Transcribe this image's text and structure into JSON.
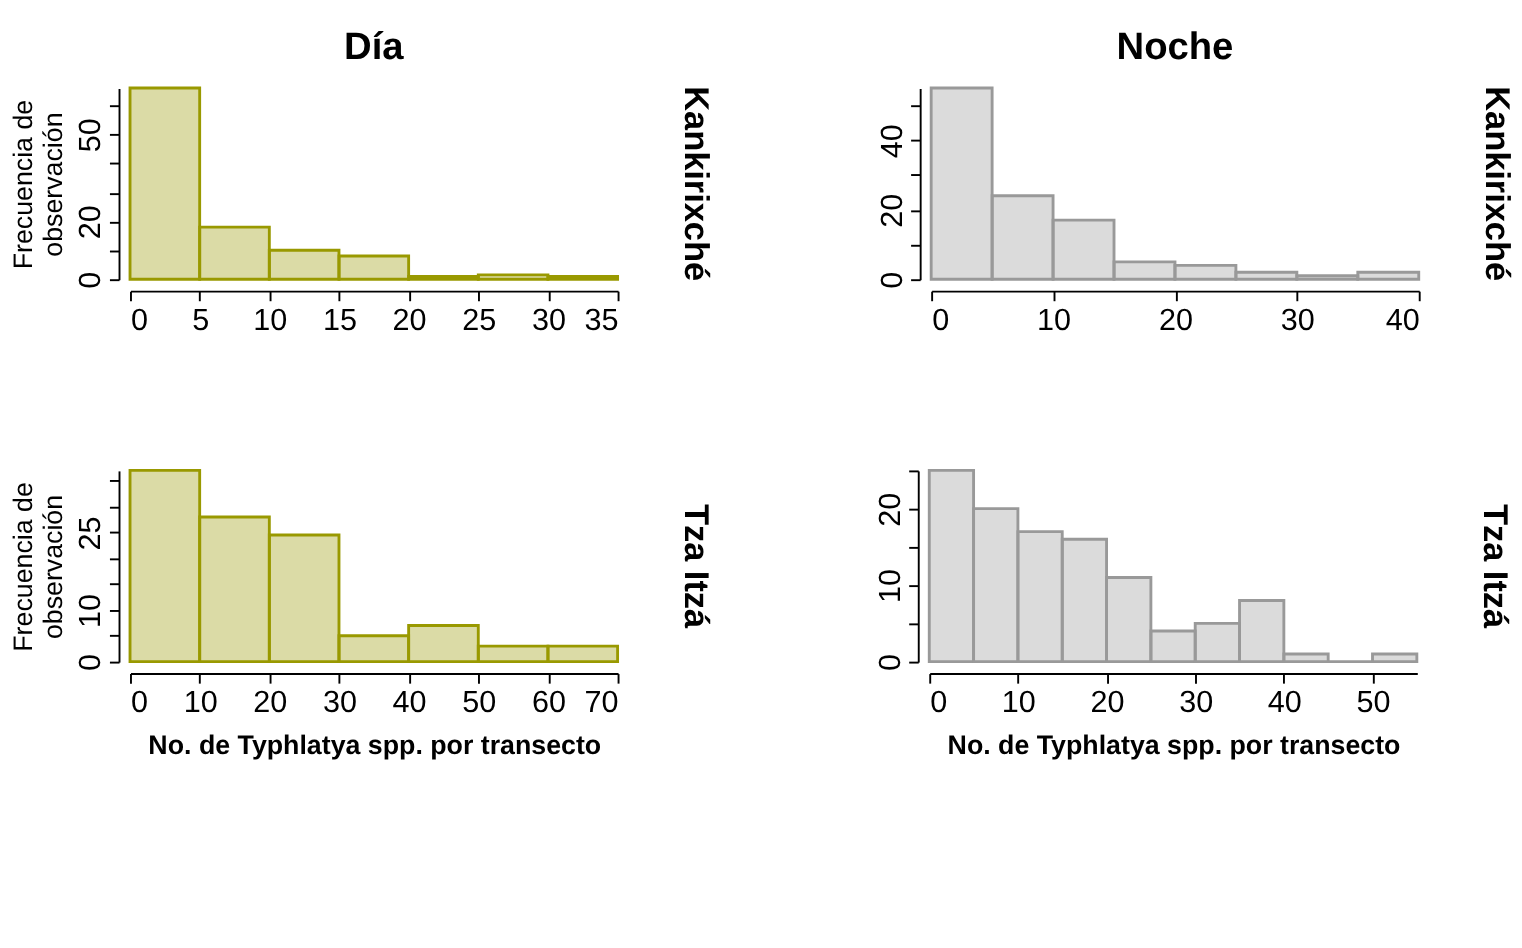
{
  "chart_data": [
    {
      "type": "histogram",
      "title": "Día",
      "ylabel": "Frecuencia de\nobservación",
      "y2label": "Kankirixché",
      "color": "#999900",
      "grid": false,
      "bins": [
        0,
        5,
        10,
        15,
        20,
        25,
        30,
        35
      ],
      "values": [
        66,
        18,
        10,
        8,
        1,
        1.5,
        1
      ],
      "xlim": [
        0,
        35
      ],
      "xticks": [
        0,
        5,
        10,
        15,
        20,
        25,
        30,
        35
      ],
      "ylim": [
        0,
        66
      ],
      "yticks": [
        0,
        {
          "value": 10,
          "label": null
        },
        20,
        {
          "value": 30,
          "label": null
        },
        {
          "value": 40,
          "label": null
        },
        50,
        {
          "value": 60,
          "label": null
        }
      ]
    },
    {
      "type": "histogram",
      "title": "Noche",
      "y2label": "Kankirixché",
      "color": "#999999",
      "grid": false,
      "bins": [
        0,
        5,
        10,
        15,
        20,
        25,
        30,
        35,
        40
      ],
      "values": [
        55,
        24,
        17,
        5,
        4,
        2,
        1,
        2
      ],
      "xlim": [
        0,
        40
      ],
      "xticks": [
        0,
        10,
        20,
        30,
        40
      ],
      "ylim": [
        0,
        55
      ],
      "yticks": [
        0,
        {
          "value": 10,
          "label": null
        },
        20,
        {
          "value": 30,
          "label": null
        },
        40,
        {
          "value": 50,
          "label": null
        }
      ]
    },
    {
      "type": "histogram",
      "ylabel": "Frecuencia de\nobservación",
      "y2label": "Tza Itzá",
      "xlabel": "No. de Typhlatya spp. por transecto",
      "color": "#999900",
      "grid": false,
      "bins": [
        0,
        10,
        20,
        30,
        40,
        50,
        60,
        70
      ],
      "values": [
        37,
        28,
        24.5,
        5,
        7,
        3,
        3
      ],
      "xlim": [
        0,
        70
      ],
      "xticks": [
        0,
        10,
        20,
        30,
        40,
        50,
        60,
        70
      ],
      "ylim": [
        0,
        37
      ],
      "yticks": [
        0,
        {
          "value": 5,
          "label": null
        },
        10,
        {
          "value": 15,
          "label": null
        },
        {
          "value": 20,
          "label": null
        },
        25,
        {
          "value": 30,
          "label": null
        },
        {
          "value": 35,
          "label": null
        }
      ]
    },
    {
      "type": "histogram",
      "y2label": "Tza Itzá",
      "xlabel": "No. de Typhlatya spp. por transecto",
      "color": "#999999",
      "grid": false,
      "bins": [
        0,
        5,
        10,
        15,
        20,
        25,
        30,
        35,
        40,
        45,
        50,
        55
      ],
      "values": [
        25,
        20,
        17,
        16,
        11,
        4,
        5,
        8,
        1,
        0,
        1
      ],
      "xlim": [
        0,
        55
      ],
      "xticks": [
        0,
        10,
        20,
        30,
        40,
        50
      ],
      "ylim": [
        0,
        25
      ],
      "yticks": [
        0,
        {
          "value": 5,
          "label": null
        },
        10,
        {
          "value": 15,
          "label": null
        },
        20,
        {
          "value": 25,
          "label": null
        }
      ]
    }
  ]
}
